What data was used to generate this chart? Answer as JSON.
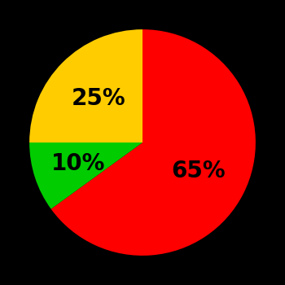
{
  "slices": [
    65,
    10,
    25
  ],
  "colors": [
    "#ff0000",
    "#00cc00",
    "#ffcc00"
  ],
  "labels": [
    "65%",
    "10%",
    "25%"
  ],
  "background_color": "#000000",
  "startangle": 90,
  "label_fontsize": 20,
  "label_fontweight": "bold",
  "label_radii": [
    0.55,
    0.6,
    0.55
  ]
}
